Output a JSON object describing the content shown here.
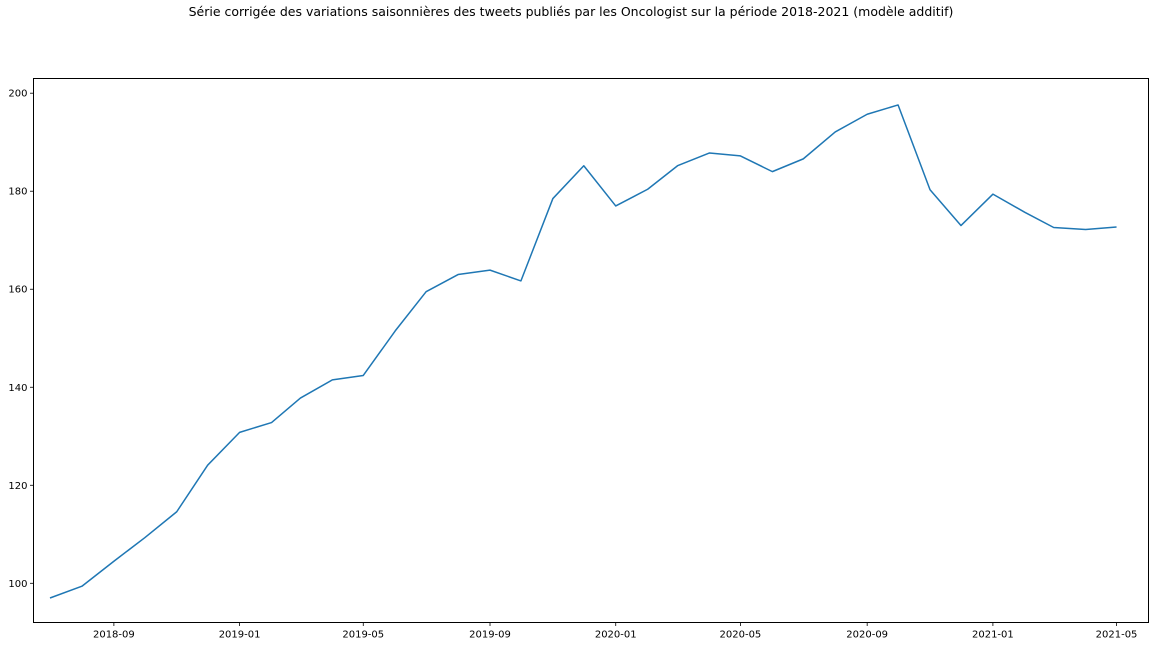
{
  "chart_data": {
    "type": "line",
    "title": "Série corrigée des variations saisonnières des tweets publiés par les Oncologist sur la période 2018-2021 (modèle additif)",
    "xlabel": "",
    "ylabel": "",
    "x_ticks": [
      "2018-09",
      "2019-01",
      "2019-05",
      "2019-09",
      "2020-01",
      "2020-05",
      "2020-09",
      "2021-01",
      "2021-05"
    ],
    "y_ticks": [
      100,
      120,
      140,
      160,
      180,
      200
    ],
    "xlim": [
      "2018-06-15",
      "2021-06-01"
    ],
    "ylim": [
      92,
      203
    ],
    "grid": false,
    "series": [
      {
        "color": "#1f77b4",
        "x": [
          "2018-07",
          "2018-08",
          "2018-09",
          "2018-10",
          "2018-11",
          "2018-12",
          "2019-01",
          "2019-02",
          "2019-03",
          "2019-04",
          "2019-05",
          "2019-06",
          "2019-07",
          "2019-08",
          "2019-09",
          "2019-10",
          "2019-11",
          "2019-12",
          "2020-01",
          "2020-02",
          "2020-03",
          "2020-04",
          "2020-05",
          "2020-06",
          "2020-07",
          "2020-08",
          "2020-09",
          "2020-10",
          "2020-11",
          "2020-12",
          "2021-01",
          "2021-02",
          "2021-03",
          "2021-04",
          "2021-05"
        ],
        "values": [
          97.0,
          99.4,
          104.5,
          109.3,
          114.6,
          124.1,
          130.8,
          132.8,
          137.8,
          141.5,
          142.4,
          151.5,
          159.5,
          163.0,
          163.9,
          161.7,
          178.5,
          185.2,
          177.0,
          180.4,
          185.2,
          187.8,
          187.2,
          184.0,
          186.6,
          192.1,
          195.7,
          197.6,
          180.3,
          173.0,
          179.4,
          175.7,
          172.6,
          172.2,
          172.7
        ]
      }
    ]
  }
}
